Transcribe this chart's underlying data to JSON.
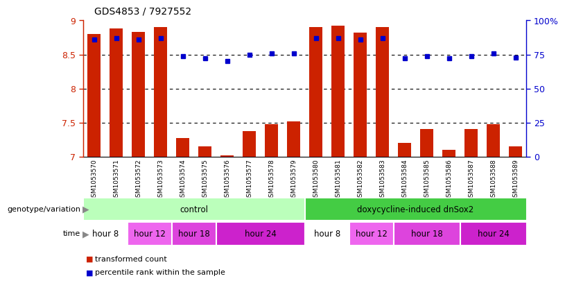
{
  "title": "GDS4853 / 7927552",
  "samples": [
    "GSM1053570",
    "GSM1053571",
    "GSM1053572",
    "GSM1053573",
    "GSM1053574",
    "GSM1053575",
    "GSM1053576",
    "GSM1053577",
    "GSM1053578",
    "GSM1053579",
    "GSM1053580",
    "GSM1053581",
    "GSM1053582",
    "GSM1053583",
    "GSM1053584",
    "GSM1053585",
    "GSM1053586",
    "GSM1053587",
    "GSM1053588",
    "GSM1053589"
  ],
  "red_values": [
    8.8,
    8.88,
    8.83,
    8.9,
    7.27,
    7.15,
    7.02,
    7.38,
    7.48,
    7.52,
    8.9,
    8.92,
    8.82,
    8.9,
    7.2,
    7.41,
    7.1,
    7.41,
    7.48,
    7.15
  ],
  "blue_values": [
    86,
    87,
    86,
    87,
    74,
    72,
    70,
    75,
    76,
    76,
    87,
    87,
    86,
    87,
    72,
    74,
    72,
    74,
    76,
    73
  ],
  "ylim_left": [
    7.0,
    9.0
  ],
  "ylim_right": [
    0,
    100
  ],
  "yticks_left": [
    7.0,
    7.5,
    8.0,
    8.5,
    9.0
  ],
  "ytick_labels_left": [
    "7",
    "7.5",
    "8",
    "8.5",
    "9"
  ],
  "yticks_right": [
    0,
    25,
    50,
    75,
    100
  ],
  "ytick_labels_right": [
    "0",
    "25",
    "50",
    "75",
    "100%"
  ],
  "bar_color": "#cc2200",
  "dot_color": "#0000cc",
  "genotype_groups": [
    {
      "label": "control",
      "start": 0,
      "end": 10,
      "color": "#bbffbb"
    },
    {
      "label": "doxycycline-induced dnSox2",
      "start": 10,
      "end": 20,
      "color": "#44cc44"
    }
  ],
  "time_groups": [
    {
      "label": "hour 8",
      "start": 0,
      "end": 2,
      "color": "#ffffff"
    },
    {
      "label": "hour 12",
      "start": 2,
      "end": 4,
      "color": "#ee66ee"
    },
    {
      "label": "hour 18",
      "start": 4,
      "end": 6,
      "color": "#dd44dd"
    },
    {
      "label": "hour 24",
      "start": 6,
      "end": 10,
      "color": "#cc22cc"
    },
    {
      "label": "hour 8",
      "start": 10,
      "end": 12,
      "color": "#ffffff"
    },
    {
      "label": "hour 12",
      "start": 12,
      "end": 14,
      "color": "#ee66ee"
    },
    {
      "label": "hour 18",
      "start": 14,
      "end": 17,
      "color": "#dd44dd"
    },
    {
      "label": "hour 24",
      "start": 17,
      "end": 20,
      "color": "#cc22cc"
    }
  ],
  "background_color": "#ffffff",
  "ticklabel_bg": "#cccccc",
  "left_axis_color": "#cc2200",
  "right_axis_color": "#0000cc",
  "left_label_color": "#888888"
}
